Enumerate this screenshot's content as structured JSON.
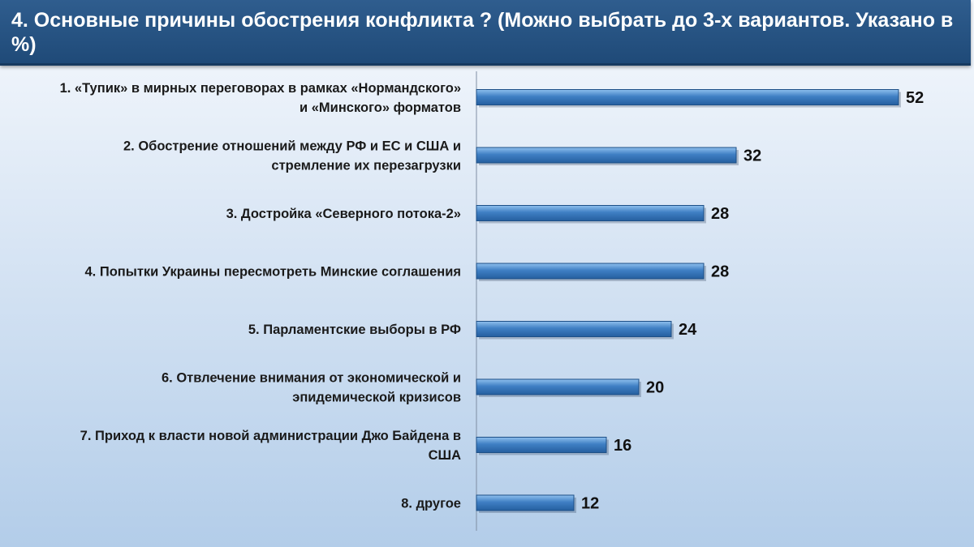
{
  "header": {
    "title": "4. Основные причины обострения конфликта ? (Можно выбрать до 3-х вариантов. Указано в %)"
  },
  "colors": {
    "bar_fill": "#3f7fc4",
    "bar_light": "#8fc0ee",
    "bar_border": "#1d4f86",
    "axis": "#7f8ea3"
  },
  "chart_data": {
    "type": "bar",
    "orientation": "horizontal",
    "categories": [
      [
        "1. «Тупик» в мирных переговорах в рамках «Нормандского»",
        "и «Минского» форматов"
      ],
      [
        "2. Обострение отношений между РФ и ЕС и США и",
        "стремление их перезагрузки"
      ],
      [
        "3. Достройка «Северного потока-2»"
      ],
      [
        "4. Попытки Украины пересмотреть Минские соглашения"
      ],
      [
        "5. Парламентские выборы в РФ"
      ],
      [
        "6. Отвлечение внимания от экономической и",
        "эпидемической кризисов"
      ],
      [
        "7. Приход к власти новой администрации Джо Байдена в",
        "США"
      ],
      [
        "8. другое"
      ]
    ],
    "values": [
      52,
      32,
      28,
      28,
      24,
      20,
      16,
      12
    ],
    "value_labels": [
      "52",
      "32",
      "28",
      "28",
      "24",
      "20",
      "16",
      "12"
    ],
    "grid": false,
    "legend": "none"
  }
}
